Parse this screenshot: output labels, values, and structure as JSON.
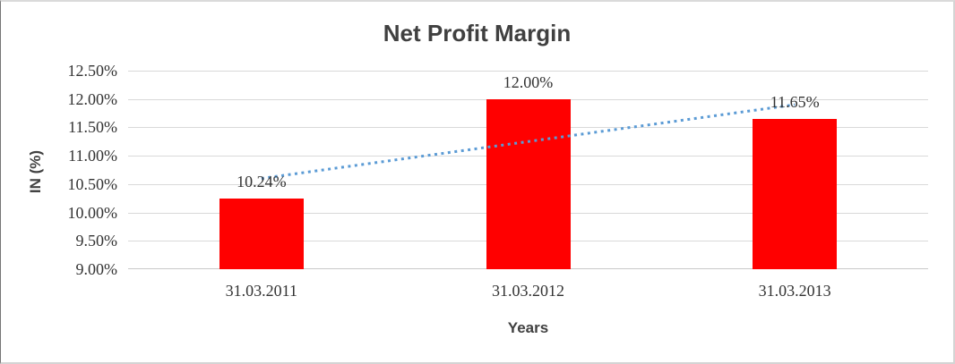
{
  "chart_data": {
    "type": "bar",
    "title": "Net Profit Margin",
    "xlabel": "Years",
    "ylabel": "IN (%)",
    "categories": [
      "31.03.2011",
      "31.03.2012",
      "31.03.2013"
    ],
    "values": [
      10.24,
      12.0,
      11.65
    ],
    "data_labels": [
      "10.24%",
      "12.00%",
      "11.65%"
    ],
    "ylim": [
      9.0,
      12.5
    ],
    "ytick_step": 0.5,
    "ytick_labels": [
      "9.00%",
      "9.50%",
      "10.00%",
      "10.50%",
      "11.00%",
      "11.50%",
      "12.00%",
      "12.50%"
    ],
    "grid": true,
    "legend": "none",
    "bar_color": "#ff0000",
    "trendline": {
      "type": "linear",
      "style": "dotted",
      "color": "#5b9bd5",
      "start_value": 10.6,
      "end_value": 11.9
    }
  },
  "colors": {
    "gridline": "#d9d9d9",
    "baseline": "#c9c9c9",
    "label_text": "#333333",
    "title_text": "#404040"
  }
}
